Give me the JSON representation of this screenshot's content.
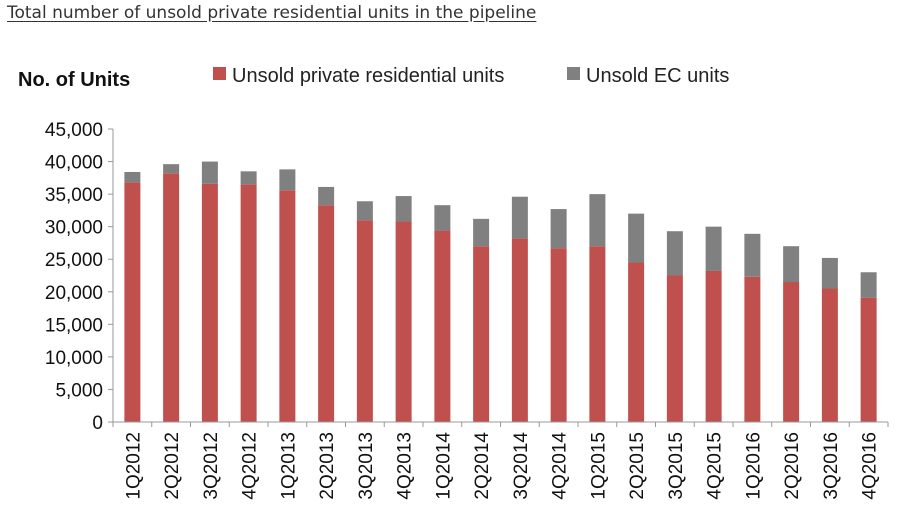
{
  "caption": "Total number of unsold private residential units in the pipeline",
  "chart_data": {
    "type": "bar",
    "stacked": true,
    "title": "Total number of unsold private residential units in the pipeline",
    "ylabel": "No. of Units",
    "xlabel": "",
    "ylim": [
      0,
      45000
    ],
    "yticks": [
      0,
      5000,
      10000,
      15000,
      20000,
      25000,
      30000,
      35000,
      40000,
      45000
    ],
    "ytick_labels": [
      "0",
      "5,000",
      "10,000",
      "15,000",
      "20,000",
      "25,000",
      "30,000",
      "35,000",
      "40,000",
      "45,000"
    ],
    "categories": [
      "1Q2012",
      "2Q2012",
      "3Q2012",
      "4Q2012",
      "1Q2013",
      "2Q2013",
      "3Q2013",
      "4Q2013",
      "1Q2014",
      "2Q2014",
      "3Q2014",
      "4Q2014",
      "1Q2015",
      "2Q2015",
      "3Q2015",
      "4Q2015",
      "1Q2016",
      "2Q2016",
      "3Q2016",
      "4Q2016"
    ],
    "series": [
      {
        "name": "Unsold private residential units",
        "color": "#c0504d",
        "values": [
          36800,
          38200,
          36600,
          36500,
          35600,
          33300,
          31000,
          30800,
          29400,
          27000,
          28200,
          26700,
          27000,
          24500,
          22500,
          23200,
          22300,
          21500,
          20500,
          19100
        ]
      },
      {
        "name": "Unsold EC units",
        "color": "#808080",
        "values": [
          1600,
          1400,
          3400,
          2000,
          3200,
          2800,
          2900,
          3900,
          3900,
          4200,
          6400,
          6000,
          8000,
          7500,
          6800,
          6800,
          6600,
          5500,
          4700,
          3900
        ]
      }
    ],
    "legend_position": "top"
  }
}
